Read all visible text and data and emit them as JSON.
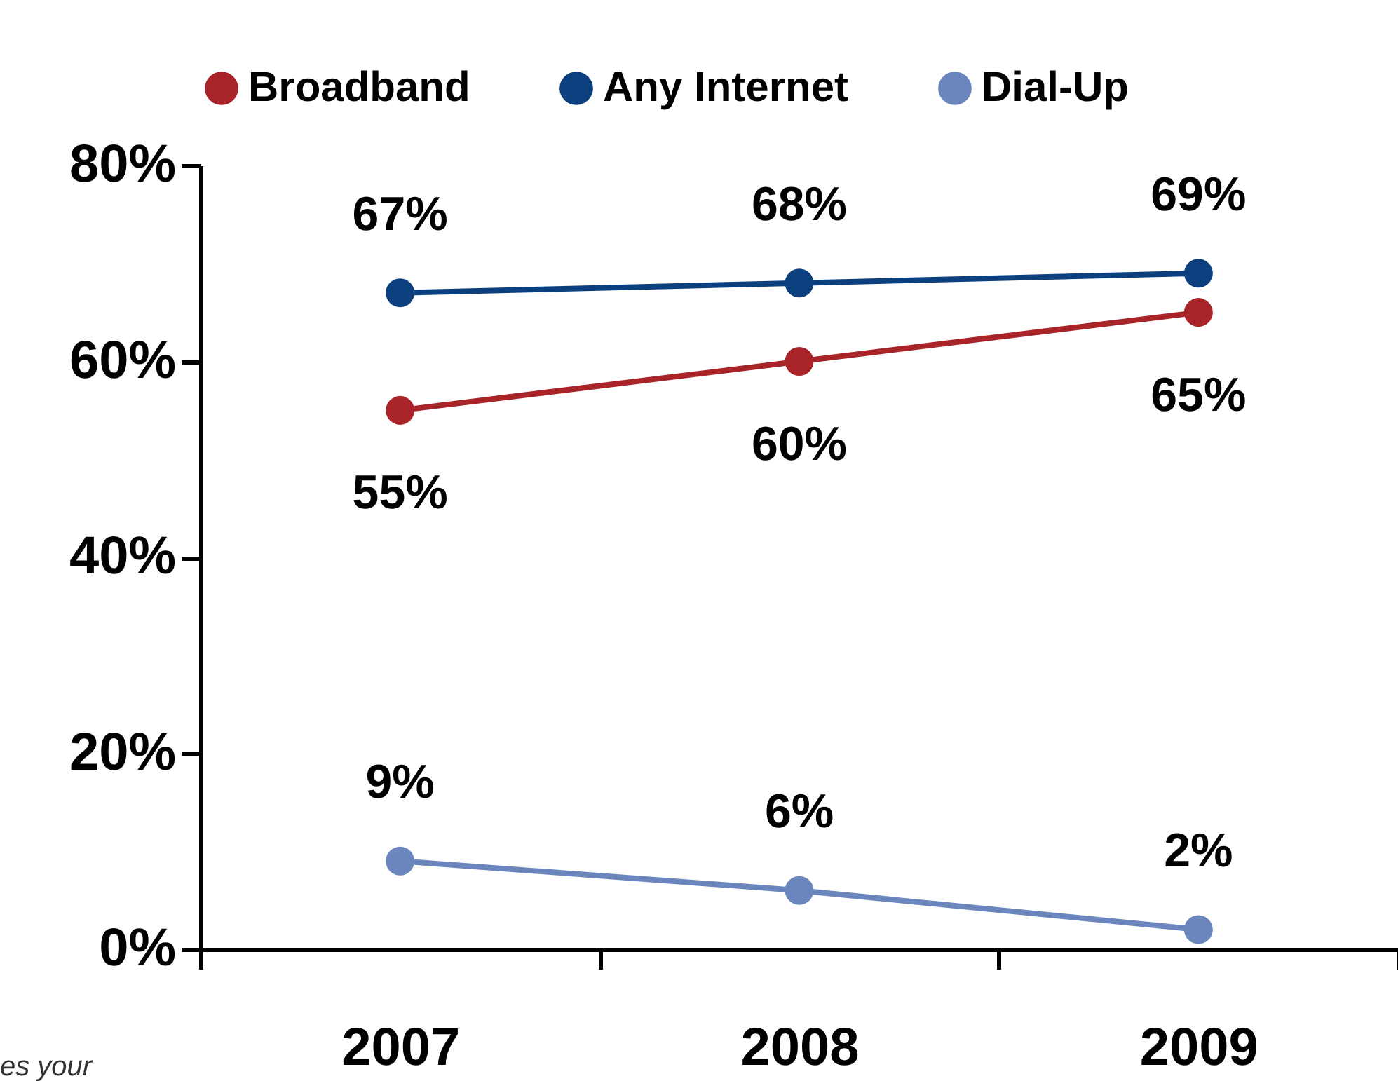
{
  "chart_data": {
    "type": "line",
    "categories": [
      "2007",
      "2008",
      "2009"
    ],
    "series": [
      {
        "name": "Broadband",
        "color": "#a82428",
        "values": [
          55,
          60,
          65
        ],
        "value_labels": [
          "55%",
          "60%",
          "65%"
        ]
      },
      {
        "name": "Any Internet",
        "color": "#0c3f7d",
        "values": [
          67,
          68,
          69
        ],
        "value_labels": [
          "67%",
          "68%",
          "69%"
        ]
      },
      {
        "name": "Dial-Up",
        "color": "#6b86bd",
        "values": [
          9,
          6,
          2
        ],
        "value_labels": [
          "9%",
          "6%",
          "2%"
        ]
      }
    ],
    "ylim": [
      0,
      80
    ],
    "yticks": [
      {
        "value": 0,
        "label": "0%"
      },
      {
        "value": 20,
        "label": "20%"
      },
      {
        "value": 40,
        "label": "40%"
      },
      {
        "value": 60,
        "label": "60%"
      },
      {
        "value": 80,
        "label": "80%"
      }
    ],
    "legend": "top",
    "marker": "circle",
    "line_style": "solid",
    "grid": false,
    "annotations": [
      "es your"
    ]
  }
}
